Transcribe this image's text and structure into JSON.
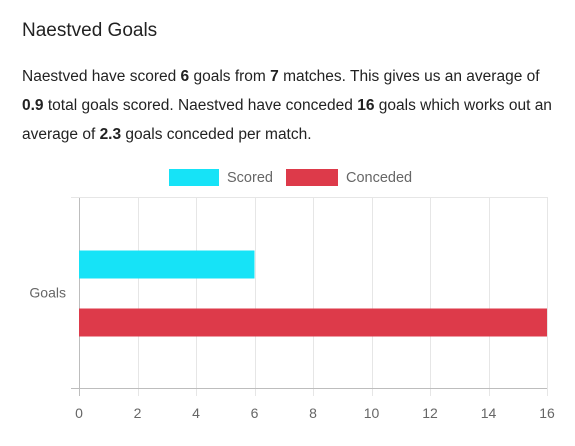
{
  "header": {
    "title": "Naestved Goals"
  },
  "description": {
    "p1": "Naestved have scored ",
    "scored": "6",
    "p2": " goals from ",
    "matches": "7",
    "p3": " matches. This gives us an average of ",
    "avg_scored": "0.9",
    "p4": " total goals scored. Naestved have conceded ",
    "conceded": "16",
    "p5": " goals which works out an average of ",
    "avg_conceded": "2.3",
    "p6": " goals conceded per match."
  },
  "chart_data": {
    "type": "bar",
    "orientation": "horizontal",
    "categories": [
      "Goals"
    ],
    "series": [
      {
        "name": "Scored",
        "values": [
          6
        ],
        "color": "#16e3f7"
      },
      {
        "name": "Conceded",
        "values": [
          16
        ],
        "color": "#dd3a4a"
      }
    ],
    "x_ticks": [
      0,
      2,
      4,
      6,
      8,
      10,
      12,
      14,
      16
    ],
    "xlim": [
      0,
      16
    ],
    "grid": true,
    "legend": "top-center"
  }
}
